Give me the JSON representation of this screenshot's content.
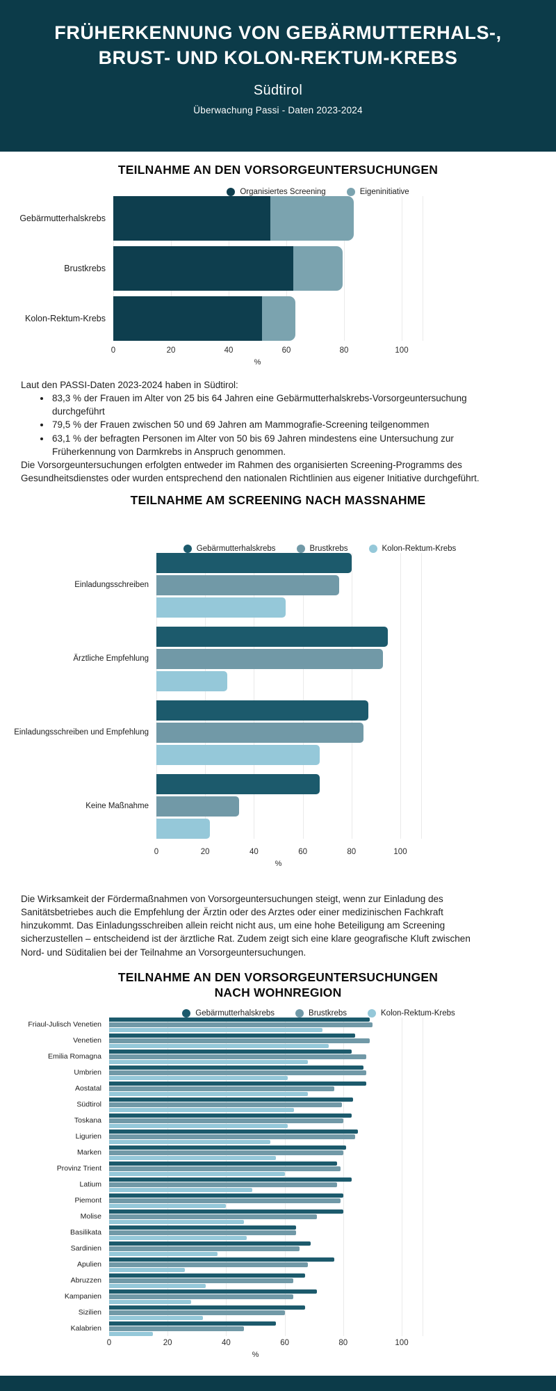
{
  "header": {
    "title_line1": "FRÜHERKENNUNG VON GEBÄRMUTTERHALS-,",
    "title_line2": "BRUST- UND KOLON-REKTUM-KREBS",
    "subtitle": "Südtirol",
    "tagline": "Überwachung Passi - Daten 2023-2024",
    "bg_color": "#0C3B49"
  },
  "sections": {
    "s1": {
      "title": "TEILNAHME AN DEN VORSORGEUNTERSUCHUNGEN"
    },
    "s2": {
      "title": "TEILNAHME AM SCREENING NACH MASSNAHME"
    },
    "s3": {
      "title": "TEILNAHME AN DEN VORSORGEUNTERSUCHUNGEN NACH WOHNREGION"
    }
  },
  "text1": {
    "intro": "Laut den PASSI-Daten 2023-2024 haben in Südtirol:",
    "bullets": [
      "83,3 % der Frauen im Alter von 25 bis 64 Jahren eine Gebärmutterhalskrebs-Vorsorgeuntersuchung durchgeführt",
      "79,5 % der Frauen zwischen 50 und 69 Jahren am Mammografie-Screening teilgenommen",
      "63,1 % der befragten Personen im Alter von 50 bis 69 Jahren mindestens eine Untersuchung zur Früherkennung von Darmkrebs in Anspruch genommen."
    ],
    "outro": "Die Vorsorgeuntersuchungen erfolgten entweder im Rahmen des organisierten Screening-Programms des Gesundheitsdienstes oder wurden entsprechend den nationalen Richtlinien aus eigener Initiative durchgeführt."
  },
  "text2": {
    "paragraph": "Die Wirksamkeit der Fördermaßnahmen von Vorsorgeuntersuchungen steigt, wenn zur Einladung des Sanitätsbetriebes auch die Empfehlung der Ärztin oder des Arztes oder einer medizinischen Fachkraft hinzukommt. Das Einladungsschreiben allein reicht nicht aus, um eine hohe Beteiligung am Screening sicherzustellen – entscheidend ist der ärztliche Rat. Zudem zeigt sich eine klare geografische Kluft zwischen Nord- und Süditalien bei der Teilnahme an Vorsorgeuntersuchungen."
  },
  "chart_data": [
    {
      "type": "stacked-bar",
      "title": "TEILNAHME AN DEN VORSORGEUNTERSUCHUNGEN",
      "categories": [
        "Gebärmutterhalskrebs",
        "Brustkrebs",
        "Kolon-Rektum-Krebs"
      ],
      "series": [
        {
          "name": "Organisiertes Screening",
          "color": "#0E3E4E",
          "values": [
            54.5,
            62.5,
            51.5
          ]
        },
        {
          "name": "Eigeninitiative",
          "color": "#7BA3AF",
          "values": [
            28.8,
            17.0,
            11.6
          ]
        }
      ],
      "totals": [
        83.3,
        79.5,
        63.1
      ],
      "xlabel": "%",
      "xlim": [
        0,
        100
      ],
      "ticks": [
        0,
        20,
        40,
        60,
        80,
        100
      ],
      "grid": true,
      "legend_position": "top"
    },
    {
      "type": "bar",
      "title": "TEILNAHME AM SCREENING NACH MASSNAHME",
      "categories": [
        "Einladungsschreiben",
        "Ärztliche Empfehlung",
        "Einladungsschreiben und Empfehlung",
        "Keine Maßnahme"
      ],
      "series": [
        {
          "name": "Gebärmutterhalskrebs",
          "color": "#1C5A6C",
          "values": [
            80,
            95,
            87,
            67
          ]
        },
        {
          "name": "Brustkrebs",
          "color": "#7199A7",
          "values": [
            75,
            93,
            85,
            34
          ]
        },
        {
          "name": "Kolon-Rektum-Krebs",
          "color": "#95C8D9",
          "values": [
            53,
            29,
            67,
            22
          ]
        }
      ],
      "xlabel": "%",
      "xlim": [
        0,
        100
      ],
      "ticks": [
        0,
        20,
        40,
        60,
        80,
        100
      ],
      "grid": true,
      "legend_position": "top"
    },
    {
      "type": "bar",
      "title": "TEILNAHME AN DEN VORSORGEUNTERSUCHUNGEN NACH WOHNREGION",
      "categories": [
        "Friaul-Julisch Venetien",
        "Venetien",
        "Emilia Romagna",
        "Umbrien",
        "Aostatal",
        "Südtirol",
        "Toskana",
        "Ligurien",
        "Marken",
        "Provinz Trient",
        "Latium",
        "Piemont",
        "Molise",
        "Basilikata",
        "Sardinien",
        "Apulien",
        "Abruzzen",
        "Kampanien",
        "Sizilien",
        "Kalabrien"
      ],
      "series": [
        {
          "name": "Gebärmutterhalskrebs",
          "color": "#1C5A6C",
          "values": [
            89,
            84,
            83,
            87,
            88,
            83.3,
            83,
            85,
            81,
            78,
            83,
            80,
            80,
            64,
            69,
            77,
            67,
            71,
            67,
            57
          ]
        },
        {
          "name": "Brustkrebs",
          "color": "#7199A7",
          "values": [
            90,
            89,
            88,
            88,
            77,
            79.5,
            80,
            84,
            80,
            79,
            78,
            79,
            71,
            64,
            65,
            68,
            63,
            63,
            60,
            46
          ]
        },
        {
          "name": "Kolon-Rektum-Krebs",
          "color": "#95C8D9",
          "values": [
            73,
            75,
            68,
            61,
            68,
            63.1,
            61,
            55,
            57,
            60,
            49,
            40,
            46,
            47,
            37,
            26,
            33,
            28,
            32,
            15
          ]
        }
      ],
      "xlabel": "%",
      "xlim": [
        0,
        100
      ],
      "ticks": [
        0,
        20,
        40,
        60,
        80,
        100
      ],
      "grid": true,
      "legend_position": "top"
    }
  ],
  "footer": {
    "bg_color": "#0C3B49"
  }
}
